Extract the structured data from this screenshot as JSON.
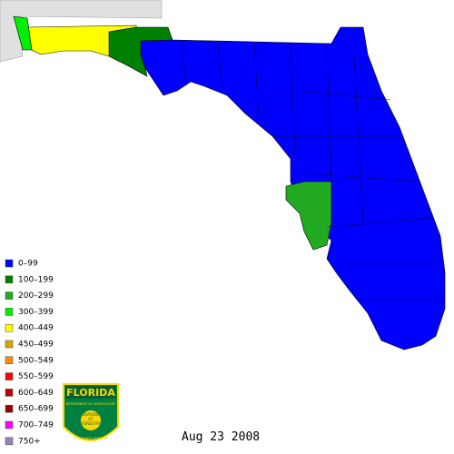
{
  "legend": {
    "items": [
      {
        "label": "0–99",
        "color": "#0000ff"
      },
      {
        "label": "100–199",
        "color": "#008000"
      },
      {
        "label": "200–299",
        "color": "#22aa22"
      },
      {
        "label": "300–399",
        "color": "#00ee00"
      },
      {
        "label": "400–449",
        "color": "#ffff00"
      },
      {
        "label": "450–499",
        "color": "#d4a800"
      },
      {
        "label": "500–549",
        "color": "#ff8c00"
      },
      {
        "label": "550–599",
        "color": "#ff0000"
      },
      {
        "label": "600–649",
        "color": "#c00000"
      },
      {
        "label": "650–699",
        "color": "#990000"
      },
      {
        "label": "700–749",
        "color": "#ff00ff"
      },
      {
        "label": "750+",
        "color": "#9a7fc0"
      }
    ]
  },
  "date": "Aug 23 2008",
  "logo": {
    "title": "FLORIDA",
    "center": [
      "DIVISION",
      "OF",
      "FORESTRY"
    ],
    "arc_top": "DEPARTMENT OF AGRICULTURE",
    "arc_bottom": "CONSUMER SERVICES"
  }
}
